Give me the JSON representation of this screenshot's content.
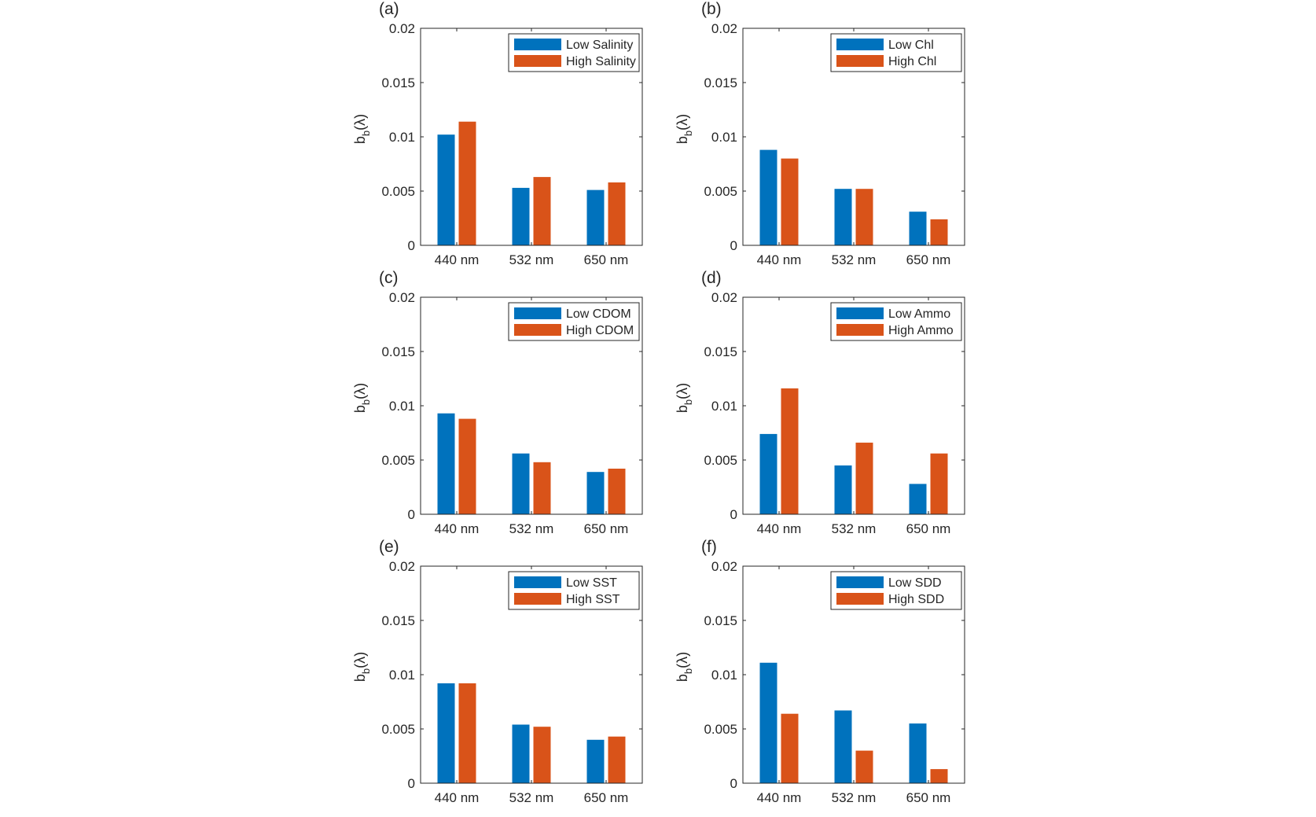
{
  "colors": {
    "low": "#0072BD",
    "high": "#D95319",
    "axis": "#262626",
    "background": "#ffffff"
  },
  "chart_data": [
    {
      "type": "bar",
      "panel_label": "(a)",
      "categories": [
        "440 nm",
        "532 nm",
        "650 nm"
      ],
      "series": [
        {
          "name": "Low Salinity",
          "values": [
            0.0102,
            0.0053,
            0.0051
          ]
        },
        {
          "name": "High Salinity",
          "values": [
            0.0114,
            0.0063,
            0.0058
          ]
        }
      ],
      "ylabel": "b_b(λ)",
      "ylabel_main": "b",
      "ylabel_sub": "b",
      "ylabel_arg": "(λ)",
      "ylim": [
        0,
        0.02
      ],
      "yticks": [
        "0",
        "0.005",
        "0.01",
        "0.015",
        "0.02"
      ],
      "legend": "top-right"
    },
    {
      "type": "bar",
      "panel_label": "(b)",
      "categories": [
        "440 nm",
        "532 nm",
        "650 nm"
      ],
      "series": [
        {
          "name": "Low Chl",
          "values": [
            0.0088,
            0.0052,
            0.0031
          ]
        },
        {
          "name": "High Chl",
          "values": [
            0.008,
            0.0052,
            0.0024
          ]
        }
      ],
      "ylabel": "b_b(λ)",
      "ylabel_main": "b",
      "ylabel_sub": "b",
      "ylabel_arg": "(λ)",
      "ylim": [
        0,
        0.02
      ],
      "yticks": [
        "0",
        "0.005",
        "0.01",
        "0.015",
        "0.02"
      ],
      "legend": "top-right"
    },
    {
      "type": "bar",
      "panel_label": "(c)",
      "categories": [
        "440 nm",
        "532 nm",
        "650 nm"
      ],
      "series": [
        {
          "name": "Low CDOM",
          "values": [
            0.0093,
            0.0056,
            0.0039
          ]
        },
        {
          "name": "High CDOM",
          "values": [
            0.0088,
            0.0048,
            0.0042
          ]
        }
      ],
      "ylabel": "b_b(λ)",
      "ylabel_main": "b",
      "ylabel_sub": "b",
      "ylabel_arg": "(λ)",
      "ylim": [
        0,
        0.02
      ],
      "yticks": [
        "0",
        "0.005",
        "0.01",
        "0.015",
        "0.02"
      ],
      "legend": "top-right"
    },
    {
      "type": "bar",
      "panel_label": "(d)",
      "categories": [
        "440 nm",
        "532 nm",
        "650 nm"
      ],
      "series": [
        {
          "name": "Low Ammo",
          "values": [
            0.0074,
            0.0045,
            0.0028
          ]
        },
        {
          "name": "High Ammo",
          "values": [
            0.0116,
            0.0066,
            0.0056
          ]
        }
      ],
      "ylabel": "b_b(λ)",
      "ylabel_main": "b",
      "ylabel_sub": "b",
      "ylabel_arg": "(λ)",
      "ylim": [
        0,
        0.02
      ],
      "yticks": [
        "0",
        "0.005",
        "0.01",
        "0.015",
        "0.02"
      ],
      "legend": "top-right"
    },
    {
      "type": "bar",
      "panel_label": "(e)",
      "categories": [
        "440 nm",
        "532 nm",
        "650 nm"
      ],
      "series": [
        {
          "name": "Low SST",
          "values": [
            0.0092,
            0.0054,
            0.004
          ]
        },
        {
          "name": "High SST",
          "values": [
            0.0092,
            0.0052,
            0.0043
          ]
        }
      ],
      "ylabel": "b_b(λ)",
      "ylabel_main": "b",
      "ylabel_sub": "b",
      "ylabel_arg": "(λ)",
      "ylim": [
        0,
        0.02
      ],
      "yticks": [
        "0",
        "0.005",
        "0.01",
        "0.015",
        "0.02"
      ],
      "legend": "top-right"
    },
    {
      "type": "bar",
      "panel_label": "(f)",
      "categories": [
        "440 nm",
        "532 nm",
        "650 nm"
      ],
      "series": [
        {
          "name": "Low SDD",
          "values": [
            0.0111,
            0.0067,
            0.0055
          ]
        },
        {
          "name": "High SDD",
          "values": [
            0.0064,
            0.003,
            0.0013
          ]
        }
      ],
      "ylabel": "b_b(λ)",
      "ylabel_main": "b",
      "ylabel_sub": "b",
      "ylabel_arg": "(λ)",
      "ylim": [
        0,
        0.02
      ],
      "yticks": [
        "0",
        "0.005",
        "0.01",
        "0.015",
        "0.02"
      ],
      "legend": "top-right"
    }
  ]
}
